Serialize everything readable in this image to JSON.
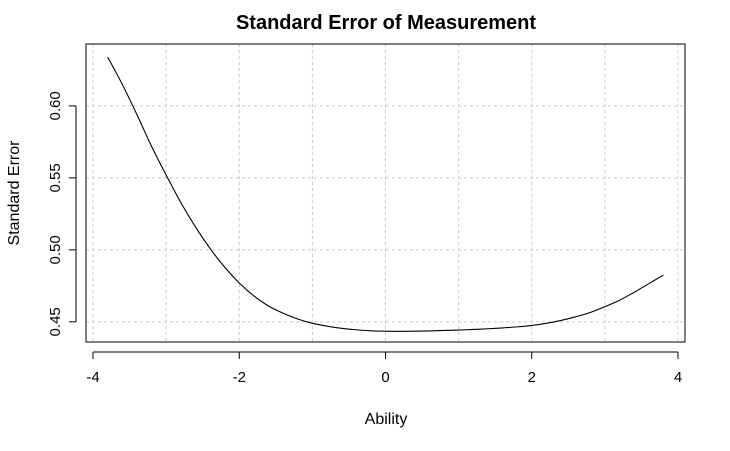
{
  "chart_data": {
    "type": "line",
    "title": "Standard Error of Measurement",
    "xlabel": "Ability",
    "ylabel": "Standard Error",
    "xlim": [
      -4,
      4
    ],
    "ylim": [
      0.436,
      0.643
    ],
    "x_ticks": [
      -4,
      -2,
      0,
      2,
      4
    ],
    "x_tick_labels": [
      "-4",
      "-2",
      "0",
      "2",
      "4"
    ],
    "y_ticks": [
      0.45,
      0.5,
      0.55,
      0.6
    ],
    "y_tick_labels": [
      "0.45",
      "0.50",
      "0.55",
      "0.60"
    ],
    "grid": true,
    "x_grid": [
      -4,
      -3,
      -2,
      -1,
      0,
      1,
      2,
      3,
      4
    ],
    "y_grid": [
      0.45,
      0.5,
      0.55,
      0.6
    ],
    "series": [
      {
        "x": [
          -3.8,
          -3.6,
          -3.4,
          -3.2,
          -3.0,
          -2.8,
          -2.6,
          -2.4,
          -2.2,
          -2.0,
          -1.8,
          -1.6,
          -1.4,
          -1.2,
          -1.0,
          -0.8,
          -0.6,
          -0.4,
          -0.2,
          0.0,
          0.2,
          0.4,
          0.6,
          0.8,
          1.0,
          1.2,
          1.4,
          1.6,
          1.8,
          2.0,
          2.2,
          2.4,
          2.6,
          2.8,
          3.0,
          3.2,
          3.4,
          3.6,
          3.8
        ],
        "values": [
          0.634,
          0.615,
          0.594,
          0.572,
          0.552,
          0.533,
          0.516,
          0.501,
          0.488,
          0.477,
          0.468,
          0.461,
          0.456,
          0.452,
          0.449,
          0.447,
          0.4455,
          0.4445,
          0.4438,
          0.4435,
          0.4434,
          0.4435,
          0.4437,
          0.444,
          0.4443,
          0.4447,
          0.4452,
          0.4458,
          0.4465,
          0.4475,
          0.449,
          0.451,
          0.4535,
          0.4565,
          0.4605,
          0.465,
          0.4705,
          0.4765,
          0.4825
        ]
      }
    ]
  }
}
